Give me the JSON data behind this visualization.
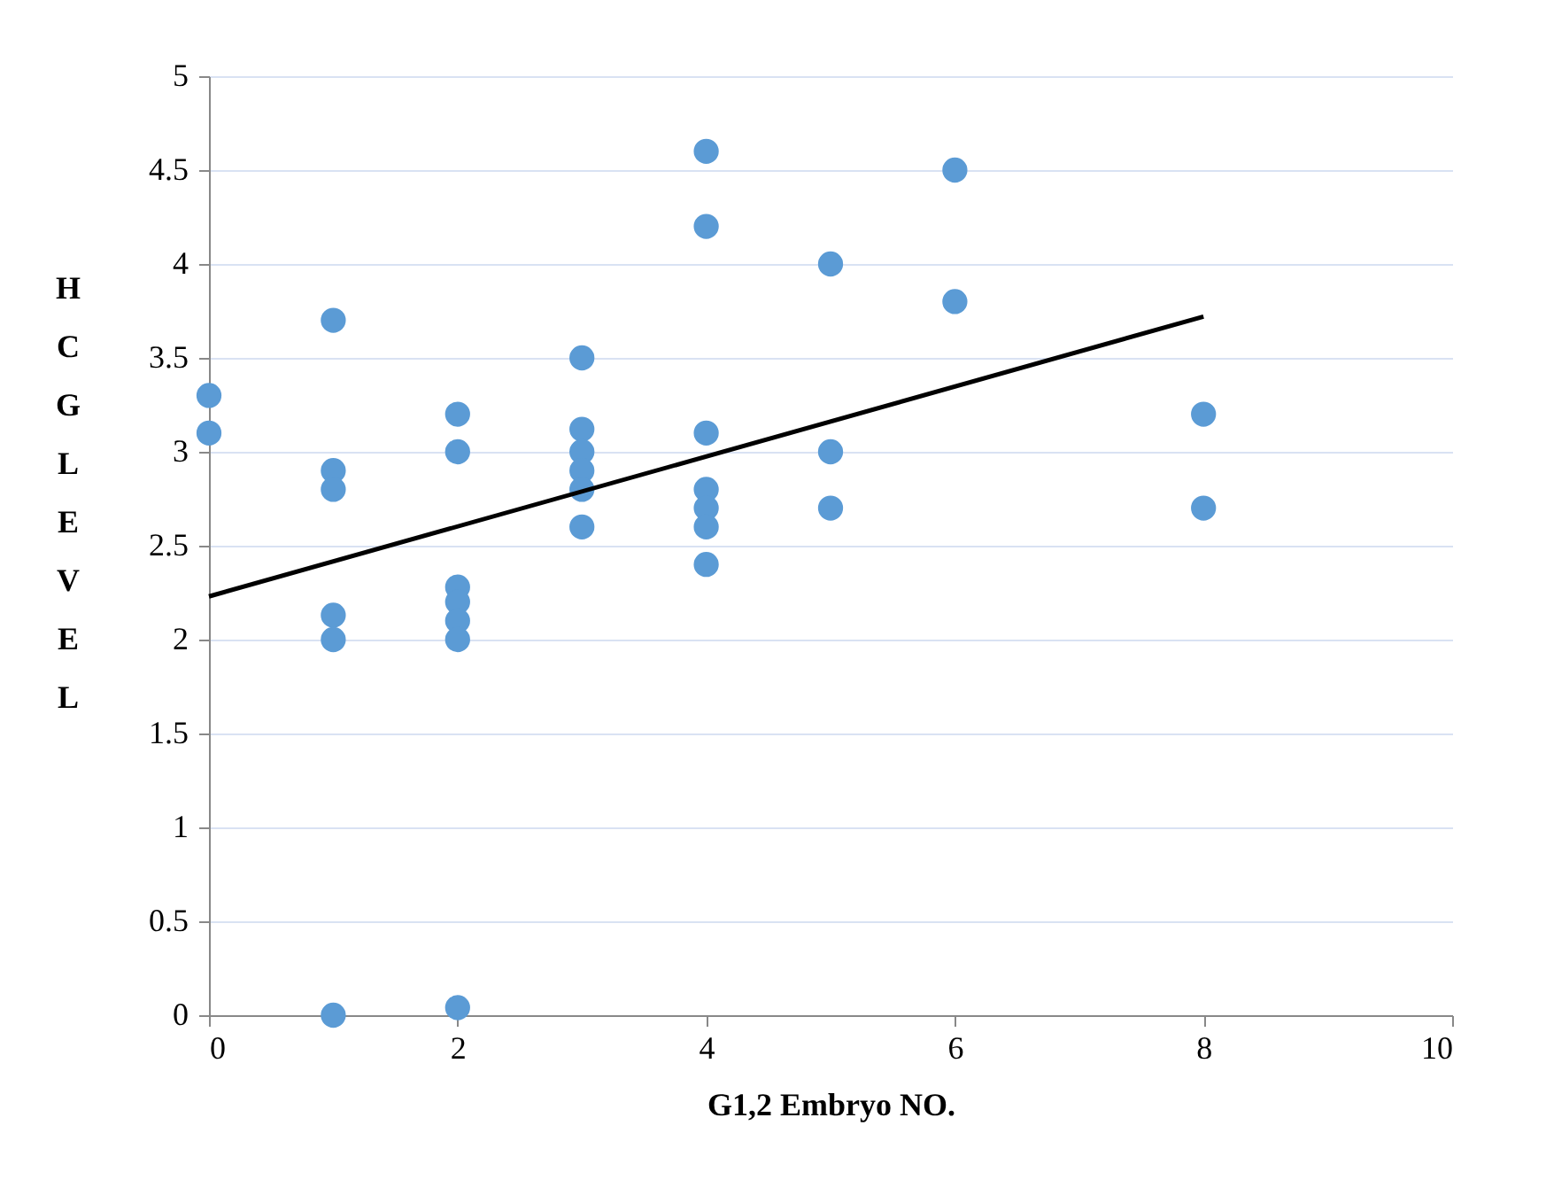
{
  "chart_data": {
    "type": "scatter",
    "xlabel": "G1,2 Embryo NO.",
    "ylabel": "HCG LEVEL",
    "xlim": [
      0,
      10
    ],
    "xticks": [
      0,
      2,
      4,
      6,
      8,
      10
    ],
    "ylim": [
      0,
      5
    ],
    "yticks": [
      0,
      0.5,
      1,
      1.5,
      2,
      2.5,
      3,
      3.5,
      4,
      4.5,
      5
    ],
    "grid": "y",
    "series": [
      {
        "color": "#5b9bd5",
        "marker": "circle",
        "x": [
          0,
          0,
          1,
          1,
          1,
          1,
          1,
          1,
          2,
          2,
          2,
          2,
          2,
          2,
          2,
          3,
          3,
          3,
          3,
          3,
          3,
          4,
          4,
          4,
          4,
          4,
          4,
          4,
          5,
          5,
          5,
          6,
          6,
          8,
          8
        ],
        "values": [
          3.3,
          3.1,
          3.7,
          2.9,
          2.8,
          2.13,
          2.0,
          0,
          3.2,
          3.0,
          2.28,
          2.2,
          2.1,
          2.0,
          0.04,
          3.5,
          3.12,
          3.0,
          2.9,
          2.8,
          2.6,
          4.6,
          4.2,
          3.1,
          2.8,
          2.7,
          2.6,
          2.4,
          4.0,
          3.0,
          2.7,
          4.5,
          3.8,
          3.2,
          2.7
        ]
      },
      {
        "type": "line",
        "color": "#000000",
        "marker": "none",
        "x": [
          0,
          8
        ],
        "values": [
          2.23,
          3.72
        ]
      }
    ]
  }
}
